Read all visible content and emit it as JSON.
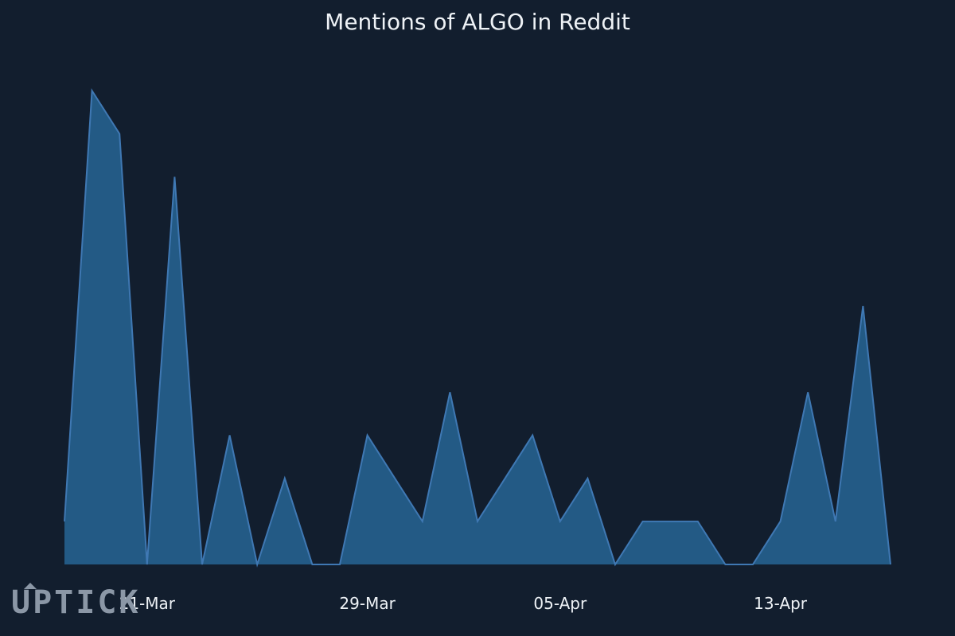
{
  "chart_data": {
    "type": "area",
    "title": "Mentions of ALGO in Reddit",
    "xlabel": "",
    "ylabel": "",
    "x_ticks": [
      {
        "label": "21-Mar",
        "x": "2021-03-21"
      },
      {
        "label": "29-Mar",
        "x": "2021-03-29"
      },
      {
        "label": "05-Apr",
        "x": "2021-04-05"
      },
      {
        "label": "13-Apr",
        "x": "2021-04-13"
      }
    ],
    "xlim": [
      "2021-03-18",
      "2021-04-17"
    ],
    "ylim": [
      0,
      12
    ],
    "grid": false,
    "legend": "none",
    "series": [
      {
        "color": "#235a85",
        "line_color": "#3f78b3",
        "points": [
          {
            "x": "2021-03-18",
            "y": 1
          },
          {
            "x": "2021-03-19",
            "y": 11
          },
          {
            "x": "2021-03-20",
            "y": 10
          },
          {
            "x": "2021-03-21",
            "y": 0
          },
          {
            "x": "2021-03-22",
            "y": 9
          },
          {
            "x": "2021-03-23",
            "y": 0
          },
          {
            "x": "2021-03-24",
            "y": 3
          },
          {
            "x": "2021-03-25",
            "y": 0
          },
          {
            "x": "2021-03-26",
            "y": 2
          },
          {
            "x": "2021-03-27",
            "y": 0
          },
          {
            "x": "2021-03-28",
            "y": 0
          },
          {
            "x": "2021-03-29",
            "y": 3
          },
          {
            "x": "2021-03-30",
            "y": 2
          },
          {
            "x": "2021-03-31",
            "y": 1
          },
          {
            "x": "2021-04-01",
            "y": 4
          },
          {
            "x": "2021-04-02",
            "y": 1
          },
          {
            "x": "2021-04-03",
            "y": 2
          },
          {
            "x": "2021-04-04",
            "y": 3
          },
          {
            "x": "2021-04-05",
            "y": 1
          },
          {
            "x": "2021-04-06",
            "y": 2
          },
          {
            "x": "2021-04-07",
            "y": 0
          },
          {
            "x": "2021-04-08",
            "y": 1
          },
          {
            "x": "2021-04-09",
            "y": 1
          },
          {
            "x": "2021-04-10",
            "y": 1
          },
          {
            "x": "2021-04-11",
            "y": 0
          },
          {
            "x": "2021-04-12",
            "y": 0
          },
          {
            "x": "2021-04-13",
            "y": 1
          },
          {
            "x": "2021-04-14",
            "y": 4
          },
          {
            "x": "2021-04-15",
            "y": 1
          },
          {
            "x": "2021-04-16",
            "y": 6
          },
          {
            "x": "2021-04-17",
            "y": 0
          }
        ]
      }
    ]
  },
  "watermark": {
    "logo_text": "UPTICK"
  },
  "colors": {
    "background": "#121e2e",
    "text": "#eef2f6",
    "logo": "#8b97a6"
  }
}
